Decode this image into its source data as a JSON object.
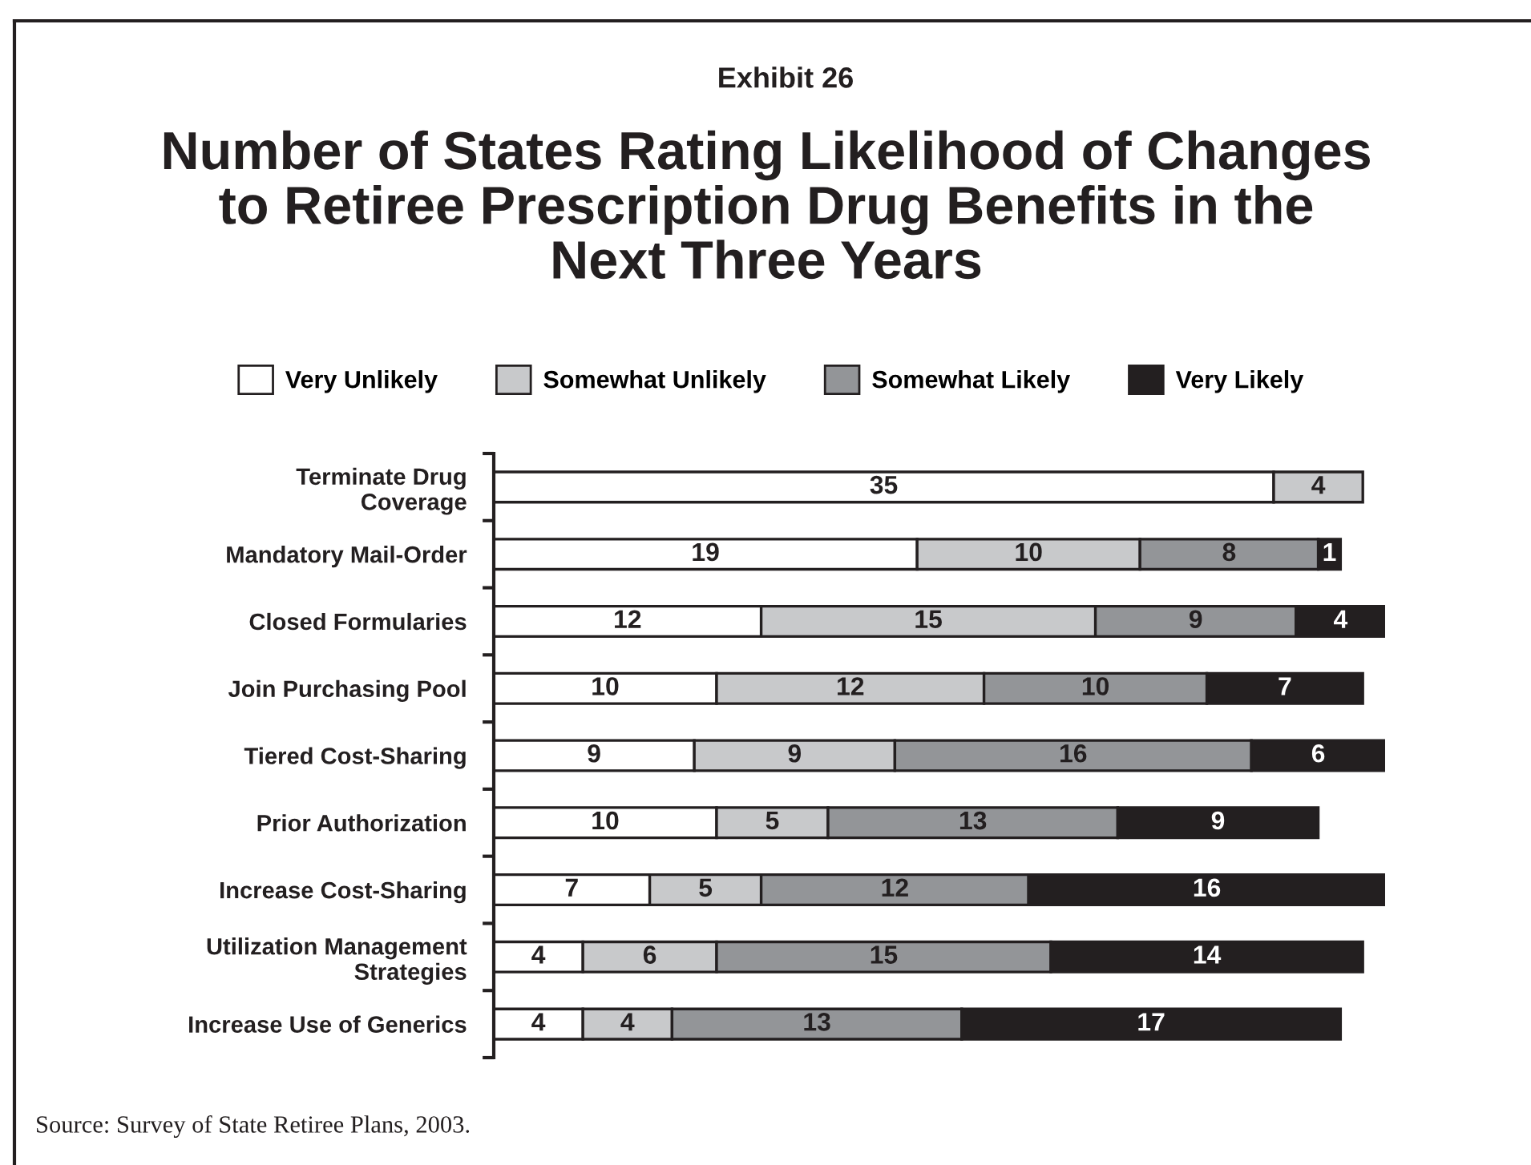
{
  "chart_data": {
    "type": "bar",
    "orientation": "horizontal",
    "stacked": true,
    "data_labels": true,
    "legend": "top",
    "tick_labels": "y",
    "title": "Exhibit 26",
    "subtitle": "Number of States Rating Likelihood of Changes\nto Retiree Prescription Drug Benefits in the\nNext Three Years",
    "annotations": [
      "Source: Survey of State Retiree Plans, 2003."
    ],
    "categories": [
      "Terminate Drug\nCoverage",
      "Mandatory Mail-Order",
      "Closed Formularies",
      "Join Purchasing Pool",
      "Tiered Cost-Sharing",
      "Prior Authorization",
      "Increase Cost-Sharing",
      "Utilization Management\nStrategies",
      "Increase Use of Generics"
    ],
    "series": [
      {
        "name": "Very Unlikely",
        "color": "#ffffff",
        "values": [
          35,
          19,
          12,
          10,
          9,
          10,
          7,
          4,
          4
        ]
      },
      {
        "name": "Somewhat Unlikely",
        "color": "#c8c9cb",
        "values": [
          4,
          10,
          15,
          12,
          9,
          5,
          5,
          6,
          4
        ]
      },
      {
        "name": "Somewhat Likely",
        "color": "#939598",
        "values": [
          null,
          8,
          9,
          10,
          16,
          13,
          12,
          15,
          13
        ]
      },
      {
        "name": "Very Likely",
        "color": "#231f20",
        "values": [
          null,
          1,
          4,
          7,
          6,
          9,
          16,
          14,
          17
        ]
      }
    ]
  }
}
